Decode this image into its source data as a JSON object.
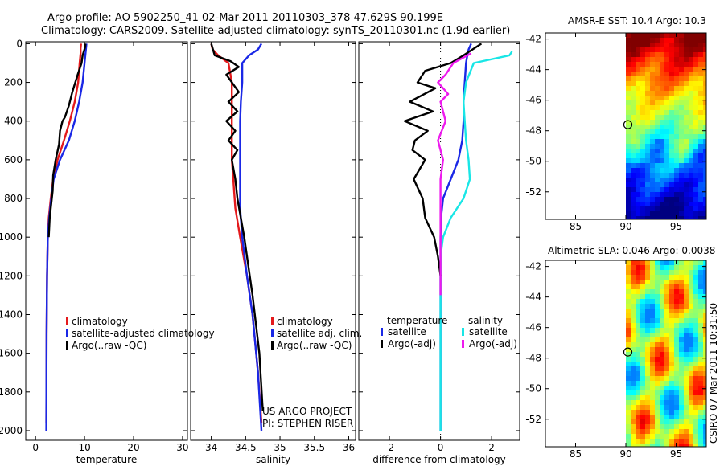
{
  "header": {
    "title_line1": "Argo profile: AO 5902250_41 02-Mar-2011 20110303_378 47.629S 90.199E",
    "title_line2": "Climatology: CARS2009. Satellite-adjusted climatology: synTS_20110301.nc (1.9d earlier)"
  },
  "credit": {
    "project": "US ARGO PROJECT",
    "pi": "PI: STEPHEN RISER",
    "stamp": "CSIRO 07-Mar-2011 10:31:50"
  },
  "colors": {
    "climatology": "#e41a1c",
    "satellite": "#1a28e6",
    "argo": "#000000",
    "sat_sal": "#19e6e6",
    "argo_sal": "#ee1aee"
  },
  "chart_data": [
    {
      "type": "line",
      "id": "temperature",
      "xlabel": "temperature",
      "xlim": [
        -2,
        31
      ],
      "ylim": [
        2050,
        -10
      ],
      "xticks": [
        0,
        10,
        20,
        30
      ],
      "yticks": [
        0,
        200,
        400,
        600,
        800,
        1000,
        1200,
        1400,
        1600,
        1800,
        2000
      ],
      "legend": [
        "climatology",
        "satellite-adjusted climatology",
        "Argo(..raw -QC)"
      ],
      "series": [
        {
          "name": "climatology",
          "color": "#e41a1c",
          "x": [
            9.3,
            9.2,
            9.2,
            9.0,
            8.7,
            8.0,
            7.0,
            5.8,
            4.5,
            3.6,
            3.1,
            2.7,
            2.5,
            2.35,
            2.25,
            2.2
          ],
          "y": [
            0,
            25,
            50,
            100,
            200,
            300,
            400,
            500,
            600,
            700,
            800,
            900,
            1000,
            1200,
            1500,
            1960
          ]
        },
        {
          "name": "satellite-adjusted climatology",
          "color": "#1a28e6",
          "x": [
            10.4,
            10.3,
            10.2,
            10.0,
            9.6,
            8.9,
            8.0,
            6.8,
            5.0,
            3.7,
            3.2,
            2.8,
            2.5,
            2.35,
            2.25,
            2.2
          ],
          "y": [
            0,
            25,
            50,
            100,
            200,
            300,
            400,
            500,
            600,
            700,
            800,
            900,
            1000,
            1200,
            1500,
            2000
          ]
        },
        {
          "name": "Argo(..raw -QC)",
          "color": "#000000",
          "x": [
            10.2,
            10.1,
            9.6,
            9.4,
            8.6,
            7.5,
            6.8,
            6.0,
            5.5,
            5.0,
            4.8,
            4.1,
            3.6,
            3.5,
            2.9,
            2.7
          ],
          "y": [
            0,
            20,
            60,
            100,
            160,
            250,
            320,
            380,
            400,
            450,
            520,
            600,
            680,
            760,
            900,
            1000
          ]
        }
      ]
    },
    {
      "type": "line",
      "id": "salinity",
      "xlabel": "salinity",
      "xlim": [
        33.7,
        36.1
      ],
      "ylim": [
        2050,
        -10
      ],
      "xticks": [
        34,
        34.5,
        35,
        35.5,
        36
      ],
      "xticklabels": [
        "34",
        "34.5",
        "35",
        "35.5",
        "36"
      ],
      "legend": [
        "climatology",
        "satellite adj. clim.",
        "Argo(..raw -QC)"
      ],
      "series": [
        {
          "name": "climatology",
          "color": "#e41a1c",
          "x": [
            34.0,
            34.02,
            34.1,
            34.25,
            34.3,
            34.3,
            34.3,
            34.3,
            34.3,
            34.32,
            34.35,
            34.42,
            34.52,
            34.6,
            34.68,
            34.73
          ],
          "y": [
            0,
            30,
            60,
            100,
            200,
            300,
            400,
            500,
            600,
            700,
            850,
            1000,
            1200,
            1400,
            1700,
            1960
          ]
        },
        {
          "name": "satellite adj. clim.",
          "color": "#1a28e6",
          "x": [
            34.73,
            34.68,
            34.55,
            34.45,
            34.45,
            34.43,
            34.42,
            34.42,
            34.42,
            34.42,
            34.42,
            34.45,
            34.52,
            34.6,
            34.68,
            34.73
          ],
          "y": [
            0,
            30,
            60,
            100,
            200,
            300,
            400,
            500,
            600,
            700,
            850,
            1000,
            1200,
            1400,
            1700,
            2000
          ]
        },
        {
          "name": "Argo(..raw -QC)",
          "color": "#000000",
          "x": [
            34.0,
            34.05,
            34.28,
            34.4,
            34.22,
            34.4,
            34.25,
            34.38,
            34.22,
            34.35,
            34.25,
            34.38,
            34.3,
            34.35,
            34.38,
            34.48,
            34.6,
            34.7,
            34.75
          ],
          "y": [
            0,
            60,
            90,
            120,
            160,
            250,
            300,
            350,
            400,
            450,
            500,
            550,
            600,
            700,
            800,
            1000,
            1300,
            1600,
            1900
          ]
        }
      ]
    },
    {
      "type": "line",
      "id": "difference",
      "xlabel": "difference from climatology",
      "xlim": [
        -3.2,
        3.1
      ],
      "ylim": [
        2050,
        -10
      ],
      "xticks": [
        -2,
        0,
        2
      ],
      "xticklabels": [
        "-2",
        "0",
        "2"
      ],
      "legend_title_left": "temperature",
      "legend_title_right": "salinity",
      "legend": [
        "satellite",
        "Argo(-adj)",
        "satellite",
        "Argo(-adj)"
      ],
      "series": [
        {
          "name": "temperature satellite",
          "color": "#1a28e6",
          "x": [
            1.2,
            1.1,
            1.05,
            1.0,
            0.95,
            0.9,
            0.9,
            0.85,
            0.7,
            0.4,
            0.1,
            0.02,
            0,
            0,
            0
          ],
          "y": [
            0,
            30,
            60,
            100,
            200,
            300,
            400,
            500,
            600,
            700,
            800,
            900,
            1000,
            1200,
            2000
          ]
        },
        {
          "name": "salinity satellite",
          "color": "#19e6e6",
          "x": [
            2.8,
            2.7,
            1.3,
            1.0,
            0.9,
            0.95,
            1.0,
            1.1,
            1.15,
            0.9,
            0.4,
            0.1,
            0,
            0,
            0
          ],
          "y": [
            40,
            60,
            100,
            200,
            300,
            400,
            500,
            600,
            700,
            800,
            900,
            1000,
            1100,
            1300,
            2000
          ]
        },
        {
          "name": "temperature Argo(-adj)",
          "color": "#000000",
          "x": [
            1.6,
            0.9,
            0.4,
            -0.6,
            -0.9,
            -0.2,
            -1.2,
            -0.3,
            -1.4,
            -0.5,
            -1.0,
            -1.1,
            -0.6,
            -1.05,
            -0.7,
            -0.6,
            -0.25,
            -0.1,
            0
          ],
          "y": [
            0,
            60,
            100,
            140,
            200,
            230,
            300,
            350,
            400,
            450,
            500,
            550,
            600,
            700,
            800,
            900,
            1000,
            1100,
            1200
          ]
        },
        {
          "name": "salinity Argo(-adj)",
          "color": "#ee1aee",
          "x": [
            1.2,
            0.5,
            0.2,
            -0.1,
            0.3,
            0.0,
            0.2,
            -0.1,
            0.1,
            0.0,
            0.0,
            0.0,
            0.0
          ],
          "y": [
            50,
            100,
            160,
            200,
            260,
            300,
            400,
            500,
            600,
            700,
            800,
            1000,
            1300
          ]
        }
      ]
    },
    {
      "type": "heatmap",
      "id": "sst",
      "title": "AMSR-E SST: 10.4  Argo: 10.3",
      "xlim": [
        82,
        98
      ],
      "ylim": [
        -53.8,
        -41.6
      ],
      "xticks": [
        85,
        90,
        95
      ],
      "yticks": [
        -42,
        -44,
        -46,
        -48,
        -50,
        -52
      ],
      "data_xrange": [
        90,
        98
      ],
      "marker": {
        "lon": 90.2,
        "lat": -47.6
      }
    },
    {
      "type": "heatmap",
      "id": "sla",
      "title": "Altimetric SLA: 0.046  Argo: 0.0038",
      "xlim": [
        82,
        98
      ],
      "ylim": [
        -53.8,
        -41.6
      ],
      "xticks": [
        85,
        90,
        95
      ],
      "yticks": [
        -42,
        -44,
        -46,
        -48,
        -50,
        -52
      ],
      "data_xrange": [
        90,
        98
      ],
      "marker": {
        "lon": 90.2,
        "lat": -47.6
      }
    }
  ]
}
